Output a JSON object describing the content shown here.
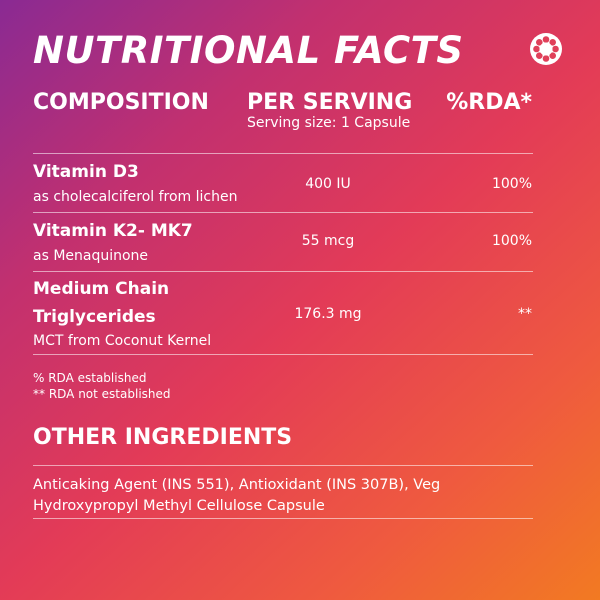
{
  "header": {
    "title": "NUTRITIONAL FACTS",
    "logo_icon": "flower-badge-icon"
  },
  "columns": {
    "composition": "COMPOSITION",
    "per_serving": "PER SERVING",
    "serving_size": "Serving size: 1 Capsule",
    "rda": "%RDA*"
  },
  "nutrients": [
    {
      "name": "Vitamin D3",
      "name_line2": "",
      "source": "as cholecalciferol from lichen",
      "amount": "400 IU",
      "rda": "100%"
    },
    {
      "name": "Vitamin K2- MK7",
      "name_line2": "",
      "source": "as Menaquinone",
      "amount": "55 mcg",
      "rda": "100%"
    },
    {
      "name": "Medium Chain",
      "name_line2": "Triglycerides",
      "source": "MCT from Coconut Kernel",
      "amount": "176.3 mg",
      "rda": "**"
    }
  ],
  "notes": {
    "established": "% RDA established",
    "not_established": "** RDA not established"
  },
  "other_ingredients": {
    "heading": "OTHER INGREDIENTS",
    "text": "Anticaking Agent (INS 551), Antioxidant (INS 307B), Veg Hydroxypropyl Methyl Cellulose Capsule"
  },
  "colors": {
    "gradient_start": "#8a2a93",
    "gradient_mid": "#e33b57",
    "gradient_end": "#f27a22",
    "text": "#ffffff"
  }
}
